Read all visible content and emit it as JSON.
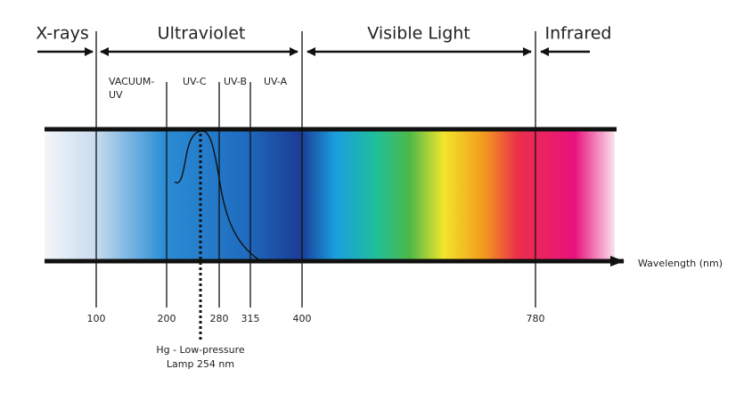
{
  "regions": [
    {
      "label": "X-rays"
    },
    {
      "label": "Ultraviolet"
    },
    {
      "label": "Visible Light"
    },
    {
      "label": "Infrared"
    }
  ],
  "subregions": [
    {
      "lines": [
        "VACUUM-",
        "UV"
      ]
    },
    {
      "lines": [
        "UV-C"
      ]
    },
    {
      "lines": [
        "UV-B"
      ]
    },
    {
      "lines": [
        "UV-A"
      ]
    }
  ],
  "ticks": [
    "100",
    "200",
    "280",
    "315",
    "400",
    "780"
  ],
  "axis_label": "Wavelength (nm)",
  "annotation": {
    "lines": [
      "Hg - Low-pressure",
      "Lamp 254 nm"
    ]
  }
}
